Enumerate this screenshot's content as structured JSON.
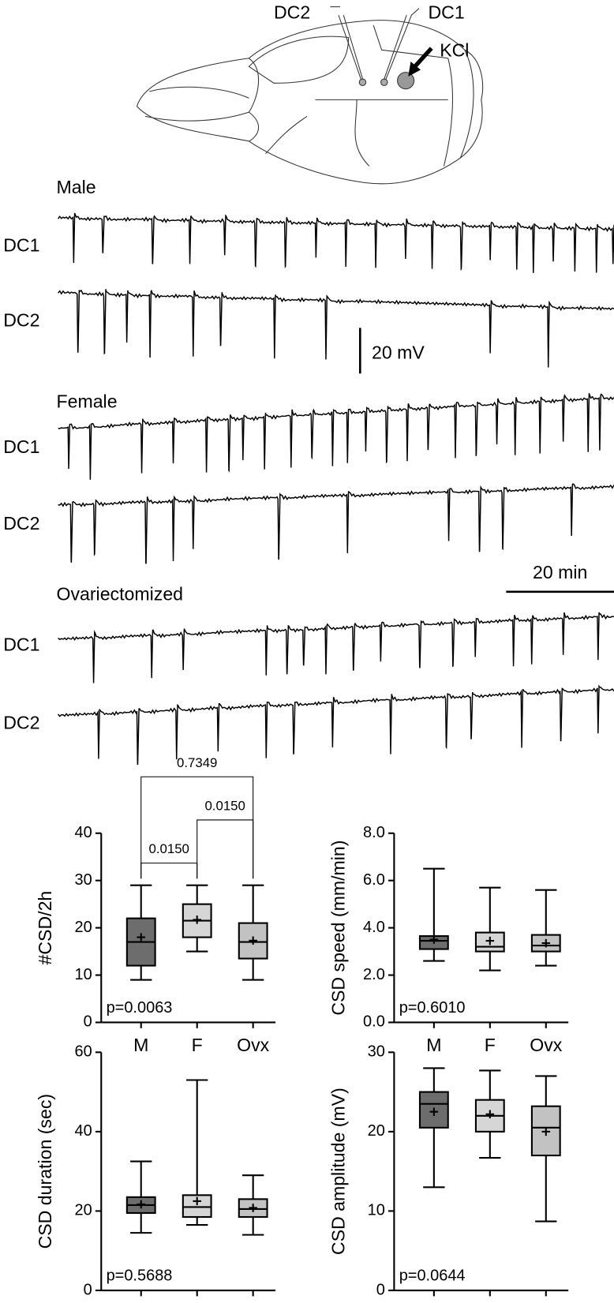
{
  "figure": {
    "skull_labels": [
      "DC2",
      "DC1",
      "KCl"
    ],
    "traces": [
      {
        "group": "Male",
        "channels": [
          "DC1",
          "DC2"
        ]
      },
      {
        "group": "Female",
        "channels": [
          "DC1",
          "DC2"
        ]
      },
      {
        "group": "Ovariectomized",
        "channels": [
          "DC1",
          "DC2"
        ]
      }
    ],
    "scale_bars": [
      "20 mV",
      "20 min"
    ]
  },
  "chart_data": [
    {
      "type": "box",
      "ylabel": "#CSD/2h",
      "categories": [
        "M",
        "F",
        "Ovx"
      ],
      "colors": [
        "#6d6d6d",
        "#d6d6d6",
        "#c2c2c2"
      ],
      "min": [
        9,
        15,
        9
      ],
      "q1": [
        12,
        18,
        13.5
      ],
      "median": [
        17,
        21.5,
        17
      ],
      "q3": [
        22,
        25,
        21
      ],
      "max": [
        29,
        29,
        29
      ],
      "mean": [
        18,
        21.7,
        17.3
      ],
      "ylim": [
        0,
        40
      ],
      "yticks": [
        0,
        10,
        20,
        30,
        40
      ],
      "annotation": "p=0.0063",
      "comparisons": [
        {
          "value": 0.015,
          "label": "0.0150"
        },
        {
          "value": 0.015,
          "label": "0.0150"
        },
        {
          "value": 0.7349,
          "label": "0.7349"
        }
      ]
    },
    {
      "type": "box",
      "ylabel": "CSD speed (mm/min)",
      "categories": [
        "M",
        "F",
        "Ovx"
      ],
      "colors": [
        "#6d6d6d",
        "#d6d6d6",
        "#c2c2c2"
      ],
      "min": [
        2.6,
        2.2,
        2.4
      ],
      "q1": [
        3.1,
        3.0,
        3.0
      ],
      "median": [
        3.45,
        3.2,
        3.25
      ],
      "q3": [
        3.65,
        3.8,
        3.7
      ],
      "max": [
        6.5,
        5.7,
        5.6
      ],
      "mean": [
        3.5,
        3.45,
        3.35
      ],
      "ylim": [
        0,
        8
      ],
      "yticks": [
        {
          "value": 0,
          "label": "0.0"
        },
        {
          "value": 2,
          "label": "2.0"
        },
        {
          "value": 4,
          "label": "4.0"
        },
        {
          "value": 6,
          "label": "6.0"
        },
        {
          "value": 8,
          "label": "8.0"
        }
      ],
      "annotation": "p=0.6010"
    },
    {
      "type": "box",
      "ylabel": "CSD duration (sec)",
      "categories": [
        "M",
        "F",
        "Ovx"
      ],
      "colors": [
        "#6d6d6d",
        "#d6d6d6",
        "#c2c2c2"
      ],
      "min": [
        14.5,
        16.5,
        14
      ],
      "q1": [
        19.5,
        18.5,
        18.5
      ],
      "median": [
        21.5,
        21,
        20.5
      ],
      "q3": [
        23.5,
        24,
        23
      ],
      "max": [
        32.5,
        53,
        29
      ],
      "mean": [
        21.7,
        22.5,
        20.8
      ],
      "ylim": [
        0,
        60
      ],
      "yticks": [
        0,
        20,
        40,
        60
      ],
      "annotation": "p=0.5688"
    },
    {
      "type": "box",
      "ylabel": "CSD amplitude (mV)",
      "categories": [
        "M",
        "F",
        "Ovx"
      ],
      "colors": [
        "#6d6d6d",
        "#d6d6d6",
        "#c2c2c2"
      ],
      "min": [
        13,
        16.7,
        8.7
      ],
      "q1": [
        20.5,
        20,
        17
      ],
      "median": [
        23.5,
        22,
        20.5
      ],
      "q3": [
        25,
        24,
        23.2
      ],
      "max": [
        28,
        27.7,
        27
      ],
      "mean": [
        22.5,
        22.2,
        20
      ],
      "ylim": [
        0,
        30
      ],
      "yticks": [
        0,
        10,
        20,
        30
      ],
      "annotation": "p=0.0644"
    }
  ]
}
